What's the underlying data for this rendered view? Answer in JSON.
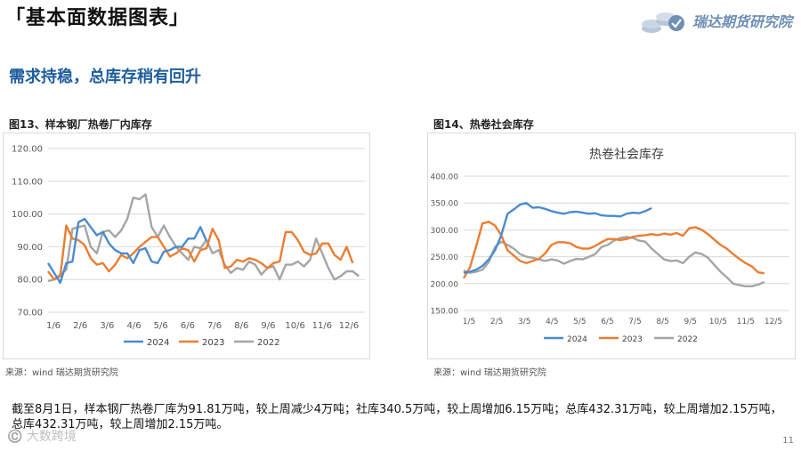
{
  "header": {
    "title": "「基本面数据图表」",
    "brand": "瑞达期货研究院",
    "headline": "需求持稳，总库存稍有回升"
  },
  "colors": {
    "y2024": "#4a8bd0",
    "y2023": "#ec7d31",
    "y2022": "#a5a5a5",
    "headline": "#1f5d9e",
    "brand": "#6f8fb4"
  },
  "chart_data": [
    {
      "id": "fig13",
      "caption": "图13、样本钢厂热卷厂内库存",
      "title": "",
      "type": "line",
      "ylim": [
        70,
        120
      ],
      "yticks": [
        "70.00",
        "80.00",
        "90.00",
        "100.00",
        "110.00",
        "120.00"
      ],
      "xticks": [
        "1/6",
        "2/6",
        "3/6",
        "4/6",
        "5/6",
        "6/6",
        "7/6",
        "8/6",
        "9/6",
        "10/6",
        "11/6",
        "12/6"
      ],
      "xdomain": [
        0,
        52
      ],
      "legend_position": "bottom",
      "series": [
        {
          "name": "2024",
          "color": "#4a8bd0",
          "values": [
            85,
            82,
            79,
            85,
            85.5,
            97.5,
            98.5,
            96,
            93.5,
            94.5,
            91,
            89,
            88,
            88,
            85,
            89,
            89.5,
            85.5,
            85,
            88.5,
            89,
            90,
            90,
            92.5,
            92.5,
            96,
            91.8
          ]
        },
        {
          "name": "2023",
          "color": "#ec7d31",
          "values": [
            82.5,
            80,
            81,
            96.5,
            92.5,
            92,
            90.5,
            86.5,
            84.5,
            85,
            82.5,
            84.5,
            87.5,
            86.5,
            88,
            90,
            91.5,
            93,
            93,
            90,
            87,
            88,
            89.5,
            89,
            85.5,
            89,
            89.5,
            95.5,
            92,
            83.5,
            84,
            86,
            85.5,
            86.5,
            86,
            85,
            83.5,
            85,
            85.5,
            94.5,
            94.5,
            92,
            88.5,
            87.5,
            88,
            91,
            91,
            87.5,
            86,
            90,
            85
          ]
        },
        {
          "name": "2022",
          "color": "#a5a5a5",
          "values": [
            79.5,
            80,
            81.5,
            83,
            95.5,
            96,
            96.5,
            90,
            88,
            94.5,
            95,
            93,
            95,
            98.5,
            105,
            104.5,
            106,
            96,
            93,
            96.5,
            93,
            90,
            88,
            86,
            90,
            89.5,
            92,
            88,
            89,
            84.5,
            82,
            83.5,
            83,
            85.5,
            84.5,
            81.5,
            83.5,
            84,
            80,
            84.5,
            84.5,
            85.5,
            84,
            86,
            92.5,
            88,
            83.5,
            80,
            81,
            82.5,
            82.5,
            81
          ]
        }
      ]
    },
    {
      "id": "fig14",
      "caption": "图14、热卷社会库存",
      "title": "热卷社会库存",
      "type": "line",
      "ylim": [
        150,
        400
      ],
      "yticks": [
        "150.00",
        "200.00",
        "250.00",
        "300.00",
        "350.00",
        "400.00"
      ],
      "xticks": [
        "1/5",
        "2/5",
        "3/5",
        "4/5",
        "5/5",
        "6/5",
        "7/5",
        "8/5",
        "9/5",
        "10/5",
        "11/5",
        "12/5"
      ],
      "xdomain": [
        0,
        52
      ],
      "legend_position": "bottom",
      "series": [
        {
          "name": "2024",
          "color": "#4a8bd0",
          "values": [
            220,
            222,
            226,
            233,
            245,
            262,
            290,
            330,
            338,
            347,
            350,
            341,
            342,
            339,
            335,
            332,
            330,
            333,
            334,
            332,
            330,
            331,
            327,
            326,
            326,
            325,
            330,
            332,
            331,
            335,
            340.5
          ]
        },
        {
          "name": "2023",
          "color": "#ec7d31",
          "values": [
            210,
            230,
            270,
            312,
            315,
            308,
            290,
            262,
            252,
            242,
            238,
            242,
            246,
            256,
            272,
            277,
            277,
            275,
            268,
            265,
            265,
            270,
            277,
            283,
            283,
            281,
            283,
            287,
            289,
            290,
            292,
            290,
            293,
            291,
            294,
            289,
            303,
            305,
            300,
            292,
            282,
            272,
            265,
            255,
            246,
            238,
            232,
            221,
            219
          ]
        },
        {
          "name": "2022",
          "color": "#a5a5a5",
          "values": [
            224,
            220,
            222,
            226,
            240,
            268,
            278,
            272,
            265,
            255,
            250,
            248,
            245,
            242,
            245,
            243,
            237,
            242,
            246,
            245,
            250,
            255,
            268,
            272,
            280,
            285,
            287,
            285,
            280,
            278,
            265,
            255,
            245,
            242,
            243,
            238,
            250,
            258,
            255,
            248,
            235,
            222,
            212,
            200,
            197,
            195,
            195,
            198,
            203
          ]
        }
      ]
    }
  ],
  "sources": {
    "fig13": "来源：wind   瑞达期货研究院",
    "fig14": "来源：wind   瑞达期货研究院"
  },
  "summary": "截至8月1日，样本钢厂热卷厂库为91.81万吨，较上周减少4万吨；社库340.5万吨，较上周增加6.15万吨；总库432.31万吨，较上周增加2.15万吨，总库432.31万吨，较上周增加2.15万吨。",
  "watermark": "©️ 大数跨境",
  "page_number": "11"
}
